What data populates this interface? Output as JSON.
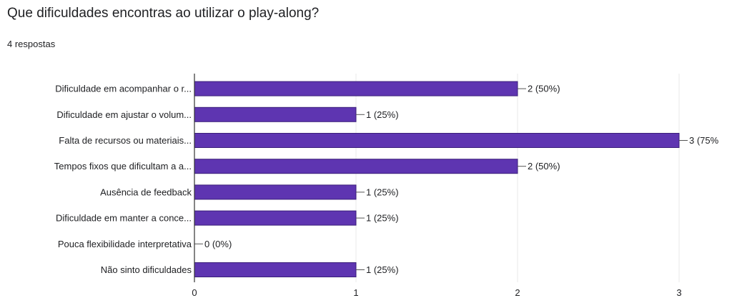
{
  "question": {
    "title": "Que dificuldades encontras ao utilizar o play-along?",
    "responses": "4 respostas"
  },
  "chart_data": {
    "type": "bar",
    "orientation": "horizontal",
    "categories": [
      "Dificuldade em acompanhar o r...",
      "Dificuldade em ajustar o volum...",
      "Falta de recursos ou materiais...",
      "Tempos fixos que dificultam a a...",
      "Ausência de feedback",
      "Dificuldade em manter a conce...",
      "Pouca flexibilidade interpretativa",
      "Não sinto dificuldades"
    ],
    "values": [
      2,
      1,
      3,
      2,
      1,
      1,
      0,
      1
    ],
    "value_labels": [
      "2 (50%)",
      "1 (25%)",
      "3 (75%",
      "2 (50%)",
      "1 (25%)",
      "1 (25%)",
      "0 (0%)",
      "1 (25%)"
    ],
    "xlim": [
      0,
      3
    ],
    "xticks": [
      "0",
      "1",
      "2",
      "3"
    ],
    "bar_color": "#5e35b1",
    "grid": true
  }
}
